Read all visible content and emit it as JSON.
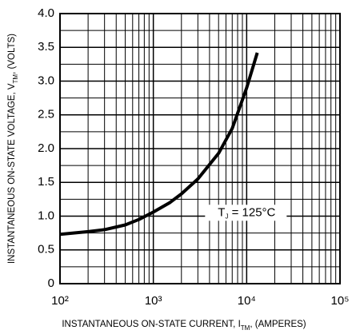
{
  "chart_data": {
    "type": "line",
    "x": [
      100,
      200,
      300,
      500,
      700,
      1000,
      1500,
      2000,
      3000,
      5000,
      7000,
      10000,
      13000
    ],
    "values": [
      0.73,
      0.77,
      0.8,
      0.87,
      0.95,
      1.06,
      1.2,
      1.33,
      1.55,
      1.93,
      2.3,
      2.9,
      3.42
    ],
    "color": "#000000",
    "xlog": true,
    "xlim": [
      100,
      100000
    ],
    "xticks": [
      {
        "value": 100,
        "label": "10²"
      },
      {
        "value": 1000,
        "label": "10³"
      },
      {
        "value": 10000,
        "label": "10⁴"
      },
      {
        "value": 100000,
        "label": "10⁵"
      }
    ],
    "xminor": [
      200,
      300,
      400,
      500,
      600,
      700,
      800,
      900,
      2000,
      3000,
      4000,
      5000,
      6000,
      7000,
      8000,
      9000,
      20000,
      30000,
      40000,
      50000,
      60000,
      70000,
      80000,
      90000
    ],
    "ylim": [
      0,
      4
    ],
    "yticks": [
      0,
      0.5,
      {
        "value": 1,
        "label": "1.0"
      },
      1.5,
      {
        "value": 2,
        "label": "2.0"
      },
      2.5,
      {
        "value": 3,
        "label": "3.0"
      },
      3.5,
      {
        "value": 4,
        "label": "4.0"
      }
    ],
    "yminor": [
      0.25,
      0.75,
      1.25,
      1.75,
      2.25,
      2.75,
      3.25,
      3.75
    ],
    "grid": true,
    "x_label": [
      "INSTANTANEOUS ON-STATE CURRENT, I",
      "TM",
      ", (AMPERES)"
    ],
    "y_label": [
      "INSTANTANEOUS ON-STATE VOLTAGE, V",
      "TM",
      ", (VOLTS)"
    ],
    "annotation": {
      "text": [
        "T",
        "J",
        " = 125°C"
      ],
      "x": 10000,
      "y": 1.05
    }
  }
}
